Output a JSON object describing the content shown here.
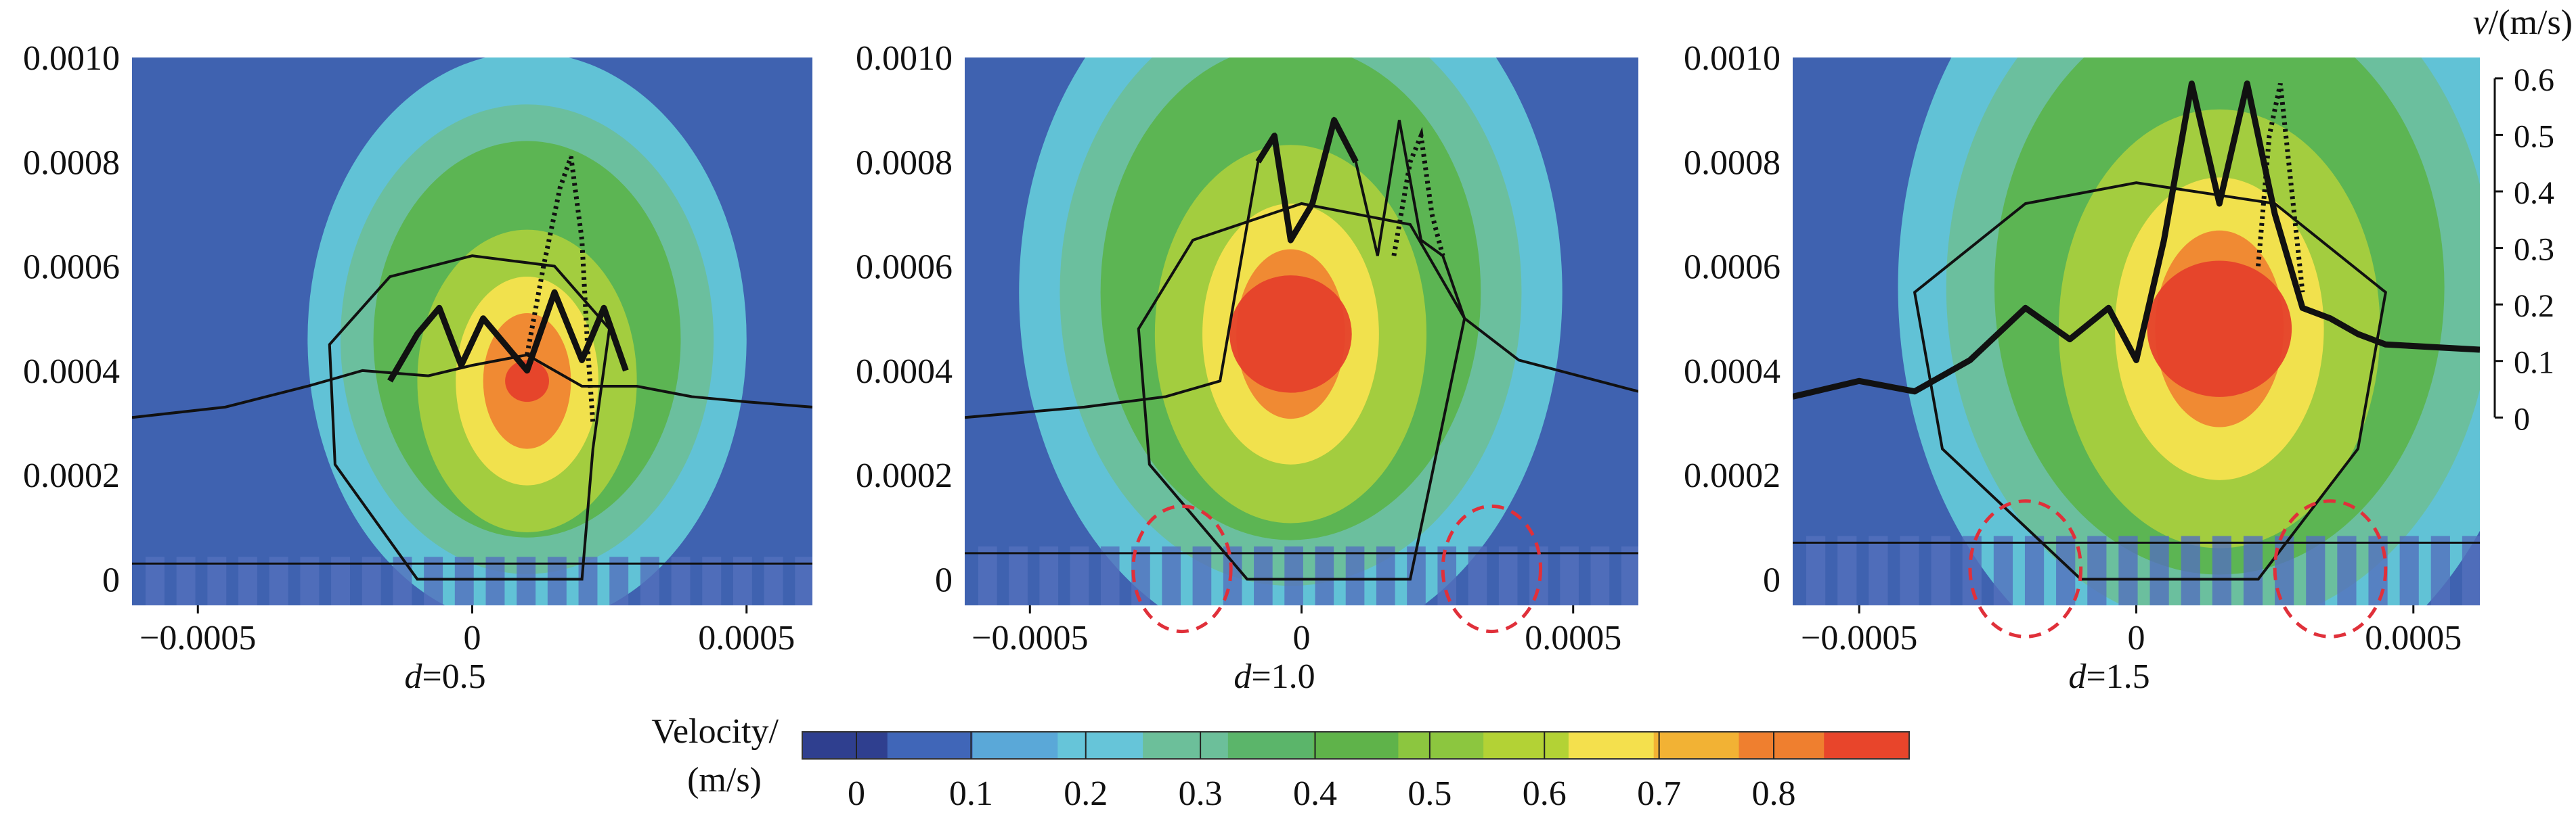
{
  "chart_data": [
    {
      "type": "heatmap",
      "panel_label": "d=0.5",
      "label_var": "d",
      "label_val": "=0.5",
      "x_ticks": [
        "−0.0005",
        "0",
        "0.0005"
      ],
      "x_tick_values": [
        -0.0005,
        0,
        0.0005
      ],
      "y_ticks": [
        "0.0010",
        "0.0008",
        "0.0006",
        "0.0004",
        "0.0002",
        "0"
      ],
      "y_tick_values": [
        0.001,
        0.0008,
        0.0006,
        0.0004,
        0.0002,
        0
      ],
      "xlim": [
        -0.00062,
        0.00062
      ],
      "ylim": [
        -5e-05,
        0.001
      ],
      "pool_boundary": [
        [
          -0.00062,
          0.00031
        ],
        [
          -0.00045,
          0.00033
        ],
        [
          -0.0003,
          0.00037
        ],
        [
          -0.0002,
          0.0004
        ],
        [
          -8e-05,
          0.00039
        ],
        [
          0,
          0.00041
        ],
        [
          0.0001,
          0.00043
        ],
        [
          0.0002,
          0.00037
        ],
        [
          0.0003,
          0.00037
        ],
        [
          0.0004,
          0.00035
        ],
        [
          0.0005,
          0.00034
        ],
        [
          0.00062,
          0.00033
        ]
      ],
      "velocity_profile": [
        [
          -0.00015,
          0.00038
        ],
        [
          -0.0001,
          0.00047
        ],
        [
          -6e-05,
          0.00052
        ],
        [
          -2e-05,
          0.00041
        ],
        [
          2e-05,
          0.0005
        ],
        [
          6e-05,
          0.00045
        ],
        [
          0.0001,
          0.0004
        ],
        [
          0.00015,
          0.00055
        ],
        [
          0.0002,
          0.00042
        ],
        [
          0.00024,
          0.00052
        ],
        [
          0.00028,
          0.0004
        ]
      ],
      "dotted_profile": [
        [
          0.0001,
          0.00043
        ],
        [
          0.00013,
          0.0006
        ],
        [
          0.00016,
          0.00075
        ],
        [
          0.00018,
          0.00081
        ],
        [
          0.0002,
          0.00065
        ],
        [
          0.00021,
          0.00045
        ],
        [
          0.00022,
          0.0003
        ]
      ],
      "melt_pool_outline": [
        [
          -0.0001,
          0.0
        ],
        [
          -0.00025,
          0.00022
        ],
        [
          -0.00026,
          0.00045
        ],
        [
          -0.00015,
          0.00058
        ],
        [
          0,
          0.00062
        ],
        [
          0.00015,
          0.0006
        ],
        [
          0.00025,
          0.00048
        ],
        [
          0.00022,
          0.00025
        ],
        [
          0.0002,
          0.0
        ]
      ],
      "peak_velocity_center": [
        0.0001,
        0.00038
      ],
      "peak_velocity_radii": [
        4e-05,
        4e-05
      ],
      "substrate_line_y": 3e-05
    },
    {
      "type": "heatmap",
      "panel_label": "d=1.0",
      "label_var": "d",
      "label_val": "=1.0",
      "x_ticks": [
        "−0.0005",
        "0",
        "0.0005"
      ],
      "x_tick_values": [
        -0.0005,
        0,
        0.0005
      ],
      "y_ticks": [
        "0.0010",
        "0.0008",
        "0.0006",
        "0.0004",
        "0.0002",
        "0"
      ],
      "y_tick_values": [
        0.001,
        0.0008,
        0.0006,
        0.0004,
        0.0002,
        0
      ],
      "xlim": [
        -0.00062,
        0.00062
      ],
      "ylim": [
        -5e-05,
        0.001
      ],
      "pool_boundary": [
        [
          -0.00062,
          0.00031
        ],
        [
          -0.0004,
          0.00033
        ],
        [
          -0.00025,
          0.00035
        ],
        [
          -0.00015,
          0.00038
        ],
        [
          -8e-05,
          0.0008
        ],
        [
          -5e-05,
          0.00085
        ],
        [
          -2e-05,
          0.00065
        ],
        [
          2e-05,
          0.00072
        ],
        [
          6e-05,
          0.00088
        ],
        [
          0.0001,
          0.0008
        ],
        [
          0.00014,
          0.00062
        ],
        [
          0.00018,
          0.00088
        ],
        [
          0.00022,
          0.00065
        ],
        [
          0.00026,
          0.00062
        ],
        [
          0.0003,
          0.0005
        ],
        [
          0.0004,
          0.00042
        ],
        [
          0.00062,
          0.00036
        ]
      ],
      "velocity_profile": [
        [
          -8e-05,
          0.0008
        ],
        [
          -5e-05,
          0.00085
        ],
        [
          -2e-05,
          0.00065
        ],
        [
          2e-05,
          0.00072
        ],
        [
          6e-05,
          0.00088
        ],
        [
          0.0001,
          0.0008
        ]
      ],
      "dotted_profile": [
        [
          0.00017,
          0.00062
        ],
        [
          0.0002,
          0.0008
        ],
        [
          0.00022,
          0.00085
        ],
        [
          0.00024,
          0.0007
        ],
        [
          0.00026,
          0.00062
        ]
      ],
      "melt_pool_outline": [
        [
          -0.0001,
          0.0
        ],
        [
          -0.00028,
          0.00022
        ],
        [
          -0.0003,
          0.00048
        ],
        [
          -0.0002,
          0.00065
        ],
        [
          0,
          0.00072
        ],
        [
          0.0002,
          0.00068
        ],
        [
          0.0003,
          0.0005
        ],
        [
          0.00025,
          0.00025
        ],
        [
          0.0002,
          0.0
        ]
      ],
      "peak_velocity_center": [
        -2e-05,
        0.00047
      ],
      "peak_velocity_radii": [
        9e-05,
        9e-05
      ],
      "substrate_line_y": 5e-05,
      "dashed_circles": [
        [
          -0.00022,
          2e-05,
          9e-05,
          0.00012
        ],
        [
          0.00035,
          2e-05,
          9e-05,
          0.00012
        ]
      ]
    },
    {
      "type": "heatmap",
      "panel_label": "d=1.5",
      "label_var": "d",
      "label_val": "=1.5",
      "x_ticks": [
        "−0.0005",
        "0",
        "0.0005"
      ],
      "x_tick_values": [
        -0.0005,
        0,
        0.0005
      ],
      "y_ticks": [
        "0.0010",
        "0.0008",
        "0.0006",
        "0.0004",
        "0.0002",
        "0"
      ],
      "y_tick_values": [
        0.001,
        0.0008,
        0.0006,
        0.0004,
        0.0002,
        0
      ],
      "xlim": [
        -0.00062,
        0.00062
      ],
      "ylim": [
        -5e-05,
        0.001
      ],
      "right_axis_label_var": "v",
      "right_axis_label_rest": "/(m/s)",
      "right_axis_ticks": [
        "0.6",
        "0.5",
        "0.4",
        "0.3",
        "0.2",
        "0.1",
        "0"
      ],
      "right_axis_tick_values": [
        0.6,
        0.5,
        0.4,
        0.3,
        0.2,
        0.1,
        0
      ],
      "velocity_profile": [
        [
          -0.00062,
          0.00035
        ],
        [
          -0.0005,
          0.00038
        ],
        [
          -0.0004,
          0.00036
        ],
        [
          -0.0003,
          0.00042
        ],
        [
          -0.0002,
          0.00052
        ],
        [
          -0.00012,
          0.00046
        ],
        [
          -5e-05,
          0.00052
        ],
        [
          0,
          0.00042
        ],
        [
          5e-05,
          0.00065
        ],
        [
          0.0001,
          0.00095
        ],
        [
          0.00015,
          0.00072
        ],
        [
          0.0002,
          0.00095
        ],
        [
          0.00025,
          0.0007
        ],
        [
          0.0003,
          0.00052
        ],
        [
          0.00035,
          0.0005
        ],
        [
          0.0004,
          0.00047
        ],
        [
          0.00045,
          0.00045
        ],
        [
          0.00062,
          0.00044
        ]
      ],
      "dotted_profile": [
        [
          0.00022,
          0.0006
        ],
        [
          0.00024,
          0.00085
        ],
        [
          0.00026,
          0.00095
        ],
        [
          0.00028,
          0.00075
        ],
        [
          0.0003,
          0.00055
        ]
      ],
      "melt_pool_outline": [
        [
          -0.0001,
          0.0
        ],
        [
          -0.00035,
          0.00025
        ],
        [
          -0.0004,
          0.00055
        ],
        [
          -0.0002,
          0.00072
        ],
        [
          0,
          0.00076
        ],
        [
          0.00025,
          0.00072
        ],
        [
          0.00045,
          0.00055
        ],
        [
          0.0004,
          0.00025
        ],
        [
          0.00022,
          0.0
        ]
      ],
      "peak_velocity_center": [
        0.00015,
        0.00048
      ],
      "peak_velocity_radii": [
        9e-05,
        9e-05
      ],
      "substrate_line_y": 7e-05,
      "dashed_circles": [
        [
          -0.0002,
          2e-05,
          0.0001,
          0.00013
        ],
        [
          0.00035,
          2e-05,
          0.0001,
          0.00013
        ]
      ]
    }
  ],
  "colorbar": {
    "title_line1": "Velocity/",
    "title_line2": "(m/s)",
    "ticks": [
      "0",
      "0.1",
      "0.2",
      "0.3",
      "0.4",
      "0.5",
      "0.6",
      "0.7",
      "0.8"
    ],
    "tick_values": [
      0,
      0.1,
      0.2,
      0.3,
      0.4,
      0.5,
      0.6,
      0.7,
      0.8
    ],
    "max": 0.85,
    "colors": [
      "#2f3f8f",
      "#4066b8",
      "#5aa8d8",
      "#66c5d9",
      "#6cbf9a",
      "#5bb56a",
      "#5fb34a",
      "#8cc63f",
      "#b3d235",
      "#f4e04d",
      "#f2b234",
      "#ef7f2f",
      "#e8452b"
    ]
  },
  "colors": {
    "background_field": "#3f62b0",
    "contour_cyan": "#63c7d8",
    "contour_teal": "#6bbf9b",
    "contour_green": "#5cb44f",
    "contour_lightgreen": "#a6cf3e",
    "contour_yellow": "#f5e14e",
    "contour_orange": "#ef8531",
    "contour_red": "#e5412b",
    "dashed_circle": "#e0303a"
  }
}
